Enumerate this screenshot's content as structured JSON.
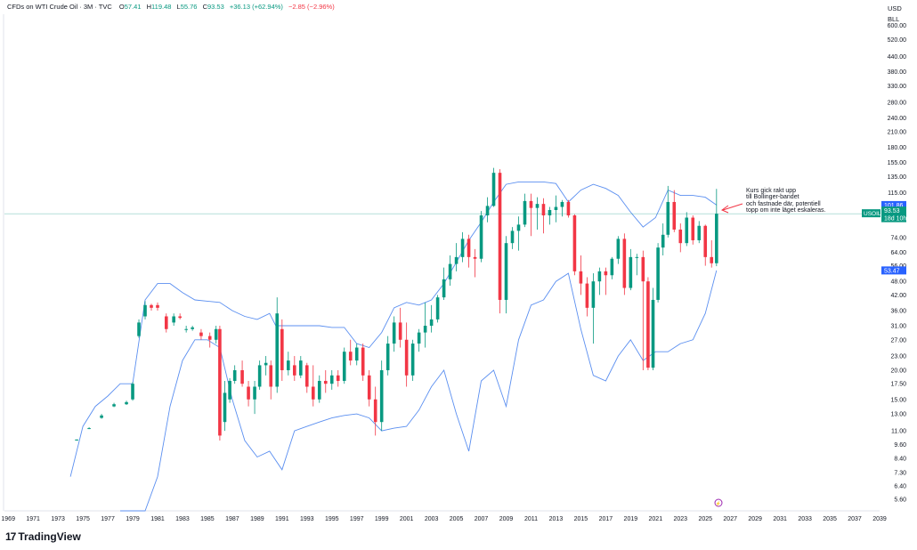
{
  "header": {
    "title": "CFDs on WTI Crude Oil · 3M · TVC",
    "open_label": "O",
    "open": "57.41",
    "high_label": "H",
    "high": "119.48",
    "low_label": "L",
    "low": "55.76",
    "close_label": "C",
    "close": "93.53",
    "change": "+36.13 (+62.94%)",
    "change2": "−2.85 (−2.96%)"
  },
  "currency": "USD",
  "unit": "BLL",
  "brand": "TradingView",
  "annotation": [
    "Kurs gick rakt upp",
    "till Bollinger-bandet",
    "och fastnade där, potentiell",
    "topp om inte läget eskaleras."
  ],
  "colors": {
    "up": "#089981",
    "down": "#f23645",
    "band": "#5b8ff0",
    "price_line": "#089981"
  },
  "chart_data": {
    "type": "candlestick",
    "title": "CFDs on WTI Crude Oil · 3M · TVC",
    "symbol": "USOIL",
    "y_scale": "log",
    "y_ticks": [
      5.6,
      6.4,
      7.3,
      8.4,
      9.6,
      11.0,
      13.0,
      15.0,
      17.5,
      20.0,
      23.0,
      27.0,
      31.0,
      36.0,
      42.0,
      48.0,
      56.0,
      64.0,
      74.0,
      115.0,
      135.0,
      155.0,
      180.0,
      210.0,
      240.0,
      280.0,
      330.0,
      380.0,
      440.0,
      520.0,
      600.0
    ],
    "y_range": [
      5.0,
      680.0
    ],
    "x_range": [
      1968.7,
      2039.0
    ],
    "x_ticks": [
      "1969",
      "1971",
      "1973",
      "1975",
      "1977",
      "1979",
      "1981",
      "1983",
      "1985",
      "1987",
      "1989",
      "1991",
      "1993",
      "1995",
      "1997",
      "1999",
      "2001",
      "2003",
      "2005",
      "2007",
      "2009",
      "2011",
      "2013",
      "2015",
      "2017",
      "2019",
      "2021",
      "2023",
      "2025",
      "2027",
      "2029",
      "2031",
      "2033",
      "2035",
      "2037",
      "2039"
    ],
    "series": [
      {
        "type": "candles",
        "columns": [
          "t",
          "open",
          "high",
          "low",
          "close"
        ],
        "values": [
          [
            1974.5,
            10.0,
            10.1,
            10.0,
            10.1
          ],
          [
            1975.5,
            11.2,
            11.4,
            11.2,
            11.3
          ],
          [
            1976.5,
            12.5,
            13.0,
            12.4,
            12.8
          ],
          [
            1977.5,
            14.0,
            14.5,
            13.9,
            14.3
          ],
          [
            1978.5,
            14.3,
            14.8,
            14.2,
            14.6
          ],
          [
            1979.0,
            15.0,
            17.8,
            14.8,
            17.5
          ],
          [
            1979.5,
            28.0,
            33.0,
            27.5,
            32.0
          ],
          [
            1980.0,
            34.0,
            39.5,
            33.0,
            38.0
          ],
          [
            1980.5,
            38.0,
            38.5,
            36.0,
            37.0
          ],
          [
            1981.0,
            38.0,
            39.0,
            36.0,
            37.0
          ],
          [
            1981.7,
            34.0,
            35.0,
            29.0,
            30.0
          ],
          [
            1982.3,
            32.0,
            35.0,
            31.0,
            34.0
          ],
          [
            1982.8,
            34.0,
            35.0,
            33.0,
            33.5
          ],
          [
            1983.3,
            30.0,
            31.0,
            29.0,
            30.0
          ],
          [
            1983.8,
            30.0,
            31.0,
            29.5,
            30.5
          ],
          [
            1984.5,
            29.0,
            30.0,
            27.0,
            28.0
          ],
          [
            1985.2,
            28.0,
            29.0,
            25.0,
            27.0
          ],
          [
            1985.7,
            27.0,
            31.0,
            26.0,
            30.0
          ],
          [
            1986.0,
            30.0,
            31.0,
            10.0,
            10.5
          ],
          [
            1986.4,
            12.0,
            18.0,
            11.0,
            16.0
          ],
          [
            1986.8,
            15.0,
            18.5,
            14.5,
            18.0
          ],
          [
            1987.2,
            18.0,
            21.0,
            17.5,
            20.0
          ],
          [
            1987.8,
            20.0,
            22.0,
            17.0,
            17.5
          ],
          [
            1988.3,
            17.0,
            18.0,
            14.0,
            15.0
          ],
          [
            1988.8,
            15.0,
            18.0,
            13.0,
            17.0
          ],
          [
            1989.2,
            17.0,
            22.0,
            16.5,
            21.0
          ],
          [
            1989.7,
            21.0,
            23.0,
            19.0,
            21.5
          ],
          [
            1990.1,
            21.0,
            22.0,
            15.0,
            17.0
          ],
          [
            1990.6,
            17.0,
            41.0,
            16.0,
            35.0
          ],
          [
            1991.0,
            30.0,
            33.0,
            18.0,
            20.0
          ],
          [
            1991.5,
            20.0,
            24.0,
            19.0,
            22.0
          ],
          [
            1992.0,
            21.0,
            23.0,
            18.0,
            19.0
          ],
          [
            1992.5,
            19.0,
            23.0,
            18.5,
            22.0
          ],
          [
            1993.0,
            21.0,
            21.5,
            16.0,
            17.0
          ],
          [
            1993.5,
            17.0,
            21.0,
            14.0,
            15.0
          ],
          [
            1994.0,
            15.0,
            19.0,
            14.5,
            18.0
          ],
          [
            1994.5,
            18.0,
            20.0,
            16.0,
            17.5
          ],
          [
            1995.0,
            17.5,
            20.0,
            16.5,
            19.0
          ],
          [
            1995.5,
            19.0,
            20.0,
            17.0,
            18.0
          ],
          [
            1996.0,
            18.0,
            25.0,
            17.5,
            24.0
          ],
          [
            1996.5,
            24.0,
            27.0,
            21.0,
            22.0
          ],
          [
            1997.0,
            22.0,
            26.0,
            21.0,
            25.0
          ],
          [
            1997.5,
            25.0,
            26.0,
            18.0,
            19.0
          ],
          [
            1998.0,
            19.0,
            20.0,
            14.0,
            15.0
          ],
          [
            1998.5,
            15.0,
            17.0,
            10.5,
            12.0
          ],
          [
            1999.0,
            12.0,
            22.0,
            11.0,
            20.0
          ],
          [
            1999.5,
            20.0,
            28.0,
            19.0,
            26.0
          ],
          [
            2000.0,
            26.0,
            34.0,
            24.0,
            32.0
          ],
          [
            2000.5,
            32.0,
            37.0,
            25.0,
            27.0
          ],
          [
            2001.0,
            27.0,
            32.0,
            17.0,
            19.0
          ],
          [
            2001.5,
            19.0,
            27.0,
            18.0,
            26.0
          ],
          [
            2002.0,
            26.0,
            30.0,
            24.0,
            29.0
          ],
          [
            2002.5,
            29.0,
            39.0,
            25.0,
            31.0
          ],
          [
            2003.0,
            31.0,
            38.0,
            29.0,
            33.0
          ],
          [
            2003.5,
            33.0,
            42.0,
            32.0,
            41.0
          ],
          [
            2004.0,
            41.0,
            55.0,
            40.0,
            49.0
          ],
          [
            2004.5,
            49.0,
            62.0,
            46.0,
            57.0
          ],
          [
            2005.0,
            57.0,
            70.0,
            53.0,
            61.0
          ],
          [
            2005.5,
            61.0,
            78.0,
            58.0,
            73.0
          ],
          [
            2006.0,
            73.0,
            76.0,
            55.0,
            61.0
          ],
          [
            2006.5,
            61.0,
            66.0,
            50.0,
            60.0
          ],
          [
            2007.0,
            60.0,
            96.0,
            58.0,
            92.0
          ],
          [
            2007.5,
            92.0,
            110.0,
            86.0,
            101.0
          ],
          [
            2008.0,
            101.0,
            147.0,
            100.0,
            140.0
          ],
          [
            2008.5,
            140.0,
            145.0,
            35.0,
            40.0
          ],
          [
            2009.0,
            40.0,
            75.0,
            35.0,
            70.0
          ],
          [
            2009.5,
            70.0,
            82.0,
            66.0,
            79.0
          ],
          [
            2010.0,
            79.0,
            91.0,
            65.0,
            84.0
          ],
          [
            2010.5,
            84.0,
            114.0,
            82.0,
            106.0
          ],
          [
            2011.0,
            106.0,
            114.0,
            75.0,
            99.0
          ],
          [
            2011.5,
            99.0,
            110.0,
            80.0,
            103.0
          ],
          [
            2012.0,
            103.0,
            109.0,
            77.0,
            92.0
          ],
          [
            2012.5,
            92.0,
            100.0,
            84.0,
            97.0
          ],
          [
            2013.0,
            97.0,
            112.0,
            86.0,
            100.0
          ],
          [
            2013.5,
            100.0,
            107.0,
            91.0,
            105.0
          ],
          [
            2014.0,
            105.0,
            107.0,
            90.0,
            92.0
          ],
          [
            2014.5,
            92.0,
            93.0,
            51.0,
            53.0
          ],
          [
            2015.0,
            53.0,
            62.0,
            42.0,
            47.0
          ],
          [
            2015.5,
            47.0,
            50.0,
            34.0,
            37.0
          ],
          [
            2016.0,
            37.0,
            52.0,
            26.0,
            48.0
          ],
          [
            2016.5,
            48.0,
            55.0,
            42.0,
            53.0
          ],
          [
            2017.0,
            53.0,
            55.0,
            42.0,
            51.0
          ],
          [
            2017.5,
            51.0,
            61.0,
            49.0,
            60.0
          ],
          [
            2018.0,
            60.0,
            75.0,
            57.0,
            73.0
          ],
          [
            2018.5,
            73.0,
            77.0,
            42.0,
            45.0
          ],
          [
            2019.0,
            45.0,
            66.0,
            44.0,
            61.0
          ],
          [
            2019.5,
            61.0,
            63.0,
            51.0,
            61.0
          ],
          [
            2020.0,
            61.0,
            65.0,
            20.0,
            48.0
          ],
          [
            2020.4,
            48.0,
            50.0,
            20.0,
            20.5
          ],
          [
            2020.8,
            20.5,
            45.0,
            20.0,
            40.0
          ],
          [
            2021.2,
            40.0,
            70.0,
            39.0,
            67.0
          ],
          [
            2021.6,
            67.0,
            85.0,
            62.0,
            76.0
          ],
          [
            2022.0,
            76.0,
            123.0,
            74.0,
            105.0
          ],
          [
            2022.5,
            105.0,
            118.0,
            78.0,
            80.0
          ],
          [
            2023.0,
            80.0,
            85.0,
            64.0,
            70.0
          ],
          [
            2023.5,
            70.0,
            95.0,
            68.0,
            90.0
          ],
          [
            2024.0,
            90.0,
            92.0,
            69.0,
            72.0
          ],
          [
            2024.5,
            72.0,
            87.0,
            70.0,
            83.0
          ],
          [
            2025.0,
            83.0,
            84.0,
            56.0,
            61.0
          ],
          [
            2025.5,
            61.0,
            72.0,
            55.0,
            57.4
          ],
          [
            2025.9,
            57.41,
            119.48,
            55.76,
            93.53
          ]
        ]
      },
      {
        "type": "line",
        "name": "Bollinger upper",
        "x": [
          1974.0,
          1975.0,
          1976.0,
          1977.0,
          1978.0,
          1979.0,
          1980.0,
          1981.0,
          1982.0,
          1983.0,
          1984.0,
          1985.0,
          1986.0,
          1987.0,
          1988.0,
          1989.0,
          1990.0,
          1990.5,
          1991.0,
          1992.0,
          1993.0,
          1994.0,
          1995.0,
          1996.0,
          1997.0,
          1998.0,
          1999.0,
          2000.0,
          2001.0,
          2002.0,
          2003.0,
          2004.0,
          2005.0,
          2006.0,
          2007.0,
          2008.0,
          2009.0,
          2010.0,
          2011.0,
          2012.0,
          2013.0,
          2014.0,
          2015.0,
          2016.0,
          2017.0,
          2018.0,
          2019.0,
          2020.0,
          2021.0,
          2022.0,
          2023.0,
          2024.0,
          2025.0,
          2025.9
        ],
        "values": [
          7.0,
          11.5,
          14.0,
          15.5,
          17.5,
          17.5,
          40.0,
          47.0,
          47.0,
          43.0,
          40.0,
          39.5,
          39.0,
          36.0,
          34.0,
          33.0,
          35.0,
          31.0,
          31.0,
          31.0,
          31.0,
          31.0,
          30.5,
          30.5,
          26.0,
          25.0,
          29.0,
          37.0,
          39.0,
          38.0,
          40.0,
          47.0,
          58.0,
          72.0,
          86.0,
          105.0,
          125.0,
          128.0,
          128.0,
          128.0,
          126.0,
          105.0,
          118.0,
          125.0,
          120.0,
          112.0,
          95.0,
          82.0,
          90.0,
          118.0,
          112.0,
          112.0,
          110.0,
          101.86
        ]
      },
      {
        "type": "line",
        "name": "Bollinger lower",
        "x": [
          1978.0,
          1979.0,
          1980.0,
          1981.0,
          1982.0,
          1983.0,
          1984.0,
          1985.0,
          1986.0,
          1987.0,
          1988.0,
          1989.0,
          1990.0,
          1991.0,
          1992.0,
          1993.0,
          1994.0,
          1995.0,
          1996.0,
          1997.0,
          1998.0,
          1999.0,
          2000.0,
          2001.0,
          2002.0,
          2003.0,
          2004.0,
          2005.0,
          2006.0,
          2007.0,
          2008.0,
          2009.0,
          2010.0,
          2011.0,
          2012.0,
          2013.0,
          2014.0,
          2015.0,
          2016.0,
          2017.0,
          2018.0,
          2019.0,
          2020.0,
          2021.0,
          2022.0,
          2023.0,
          2024.0,
          2025.0,
          2025.9
        ],
        "values": [
          5.0,
          5.0,
          5.0,
          7.0,
          14.0,
          22.0,
          27.0,
          27.0,
          25.0,
          15.0,
          10.0,
          8.5,
          9.0,
          7.5,
          11.0,
          11.5,
          12.0,
          12.5,
          12.8,
          13.0,
          12.5,
          11.0,
          11.3,
          11.5,
          13.5,
          17.0,
          20.0,
          13.0,
          9.0,
          18.0,
          20.0,
          14.0,
          27.0,
          38.0,
          40.0,
          48.0,
          52.0,
          30.0,
          19.0,
          18.0,
          23.0,
          27.0,
          22.0,
          24.0,
          24.0,
          26.0,
          27.0,
          35.0,
          53.47
        ]
      }
    ],
    "price_labels": [
      {
        "label": "101.86",
        "value": 101.86,
        "color": "#2962ff"
      },
      {
        "label": "93.53",
        "value": 93.53,
        "color": "#089981"
      },
      {
        "label": "18d 10h",
        "value": 93.53,
        "color": "#089981"
      },
      {
        "label": "53.47",
        "value": 53.47,
        "color": "#2962ff"
      }
    ]
  }
}
